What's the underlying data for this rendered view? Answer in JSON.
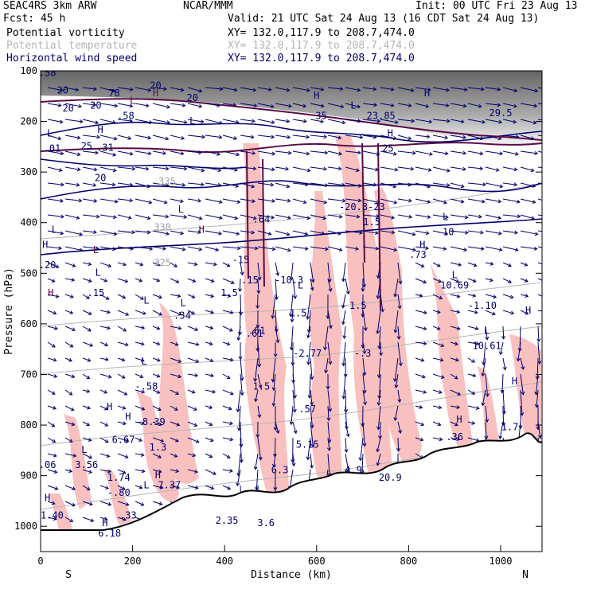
{
  "header": {
    "model": "SEAC4RS  3km ARW",
    "org": "NCAR/MMM",
    "init": "Init: 00 UTC Fri 23 Aug 13",
    "fcst": "Fcst:   45 h",
    "valid": "Valid: 21 UTC Sat 24 Aug 13 (16 CDT Sat 24 Aug 13)",
    "fields": [
      {
        "label": "Potential vorticity",
        "xy": "XY= 132.0,117.9 to 208.7,474.0",
        "color": "#000000"
      },
      {
        "label": "Potential temperature",
        "xy": "XY= 132.0,117.9 to 208.7,474.0",
        "color": "#b4b4b4"
      },
      {
        "label": "Horizontal wind speed",
        "xy": "XY= 132.0,117.9 to 208.7,474.0",
        "color": "#00006e"
      }
    ]
  },
  "chart_data": {
    "type": "cross-section",
    "xlabel": "Distance (km)",
    "ylabel": "Pressure (hPa)",
    "xlim": [
      0,
      1090
    ],
    "ylim": [
      1050,
      100
    ],
    "x_ticks": [
      0,
      200,
      400,
      600,
      800,
      1000
    ],
    "y_ticks": [
      100,
      200,
      300,
      400,
      500,
      600,
      700,
      800,
      900,
      1000
    ],
    "x_end_labels": {
      "left": "S",
      "right": "N"
    },
    "theta_labels": [
      {
        "label": "335",
        "x": 275,
        "p": 325
      },
      {
        "label": "330",
        "x": 265,
        "p": 415
      },
      {
        "label": "325",
        "x": 265,
        "p": 485
      }
    ],
    "wind_labels": [
      {
        "label": "20",
        "x": 60,
        "p": 180
      },
      {
        "label": "20",
        "x": 120,
        "p": 175
      },
      {
        "label": "25",
        "x": 100,
        "p": 255
      },
      {
        "label": "20",
        "x": 130,
        "p": 318
      },
      {
        "label": "20",
        "x": 330,
        "p": 160
      }
    ],
    "pv_labels": [
      {
        "label": "H",
        "x": 22,
        "p": 545
      },
      {
        "label": "H",
        "x": 250,
        "p": 150
      },
      {
        "label": "L",
        "x": 200,
        "p": 165
      },
      {
        "label": "H",
        "x": 350,
        "p": 420
      },
      {
        "label": "L",
        "x": 120,
        "p": 460
      },
      {
        "label": "L",
        "x": 305,
        "p": 380
      }
    ],
    "extrema_labels": [
      {
        "label": ".58",
        "x": 15,
        "p": 110
      },
      {
        "label": "20",
        "x": 48,
        "p": 145
      },
      {
        "label": "78",
        "x": 160,
        "p": 150
      },
      {
        "label": "20",
        "x": 250,
        "p": 135
      },
      {
        "label": ".58",
        "x": 185,
        "p": 195
      },
      {
        "label": "L",
        "x": 20,
        "p": 230
      },
      {
        "label": "H",
        "x": 130,
        "p": 223
      },
      {
        "label": ".01",
        "x": 25,
        "p": 260
      },
      {
        "label": ".31",
        "x": 140,
        "p": 258
      },
      {
        "label": "L",
        "x": 30,
        "p": 420
      },
      {
        "label": "H",
        "x": 10,
        "p": 450
      },
      {
        "label": ".20",
        "x": 15,
        "p": 490
      },
      {
        "label": "L",
        "x": 125,
        "p": 505
      },
      {
        "label": ".15",
        "x": 120,
        "p": 545
      },
      {
        "label": "L",
        "x": 310,
        "p": 565
      },
      {
        "label": ".34",
        "x": 308,
        "p": 590
      },
      {
        "label": "L",
        "x": 230,
        "p": 560
      },
      {
        "label": "1.5",
        "x": 410,
        "p": 545
      },
      {
        "label": ".61",
        "x": 470,
        "p": 620
      },
      {
        "label": "L",
        "x": 225,
        "p": 680
      },
      {
        "label": "-.58",
        "x": 230,
        "p": 730
      },
      {
        "label": "H",
        "x": 190,
        "p": 790
      },
      {
        "label": "-8.39",
        "x": 240,
        "p": 800
      },
      {
        "label": "6.67",
        "x": 180,
        "p": 835
      },
      {
        "label": "1.3",
        "x": 255,
        "p": 850
      },
      {
        "label": "H",
        "x": 150,
        "p": 770
      },
      {
        "label": "L",
        "x": 95,
        "p": 855
      },
      {
        "label": ".06",
        "x": 15,
        "p": 885
      },
      {
        "label": "3.56",
        "x": 100,
        "p": 885
      },
      {
        "label": "1.74",
        "x": 170,
        "p": 910
      },
      {
        "label": "-.80",
        "x": 170,
        "p": 940
      },
      {
        "label": ".33",
        "x": 190,
        "p": 985
      },
      {
        "label": "H",
        "x": 15,
        "p": 950
      },
      {
        "label": "1.40",
        "x": 25,
        "p": 985
      },
      {
        "label": "H",
        "x": 140,
        "p": 1000
      },
      {
        "label": "6.18",
        "x": 150,
        "p": 1020
      },
      {
        "label": "H",
        "x": 255,
        "p": 905
      },
      {
        "label": "7.37",
        "x": 280,
        "p": 925
      },
      {
        "label": "L",
        "x": 230,
        "p": 925
      },
      {
        "label": "2.35",
        "x": 405,
        "p": 995
      },
      {
        "label": "3.6",
        "x": 490,
        "p": 1000
      },
      {
        "label": "L",
        "x": 330,
        "p": 205
      },
      {
        "label": "-15",
        "x": 435,
        "p": 480
      },
      {
        "label": ".64",
        "x": 480,
        "p": 400
      },
      {
        "label": ".15",
        "x": 455,
        "p": 520
      },
      {
        "label": ".61",
        "x": 465,
        "p": 625
      },
      {
        "label": "L",
        "x": 565,
        "p": 530
      },
      {
        "label": "-10.3",
        "x": 540,
        "p": 520
      },
      {
        "label": "1.5",
        "x": 560,
        "p": 585
      },
      {
        "label": "-2.77",
        "x": 580,
        "p": 665
      },
      {
        "label": "1.5",
        "x": 480,
        "p": 730
      },
      {
        "label": ".57",
        "x": 580,
        "p": 775
      },
      {
        "label": "5.15",
        "x": 580,
        "p": 845
      },
      {
        "label": "6.3",
        "x": 520,
        "p": 895
      },
      {
        "label": "4.9",
        "x": 680,
        "p": 895
      },
      {
        "label": "20.9",
        "x": 760,
        "p": 910
      },
      {
        "label": "-.3",
        "x": 700,
        "p": 665
      },
      {
        "label": "1.5",
        "x": 690,
        "p": 570
      },
      {
        "label": "-20.3",
        "x": 680,
        "p": 375
      },
      {
        "label": "-23",
        "x": 730,
        "p": 375
      },
      {
        "label": "1.5",
        "x": 720,
        "p": 405
      },
      {
        "label": "35",
        "x": 610,
        "p": 195
      },
      {
        "label": "23.85",
        "x": 740,
        "p": 195
      },
      {
        "label": "25",
        "x": 755,
        "p": 260
      },
      {
        "label": "H",
        "x": 600,
        "p": 155
      },
      {
        "label": "H",
        "x": 760,
        "p": 230
      },
      {
        "label": "L",
        "x": 680,
        "p": 175
      },
      {
        "label": "H",
        "x": 830,
        "p": 450
      },
      {
        "label": ".73",
        "x": 820,
        "p": 470
      },
      {
        "label": "L",
        "x": 880,
        "p": 395
      },
      {
        "label": "-10",
        "x": 880,
        "p": 425
      },
      {
        "label": "L",
        "x": 900,
        "p": 510
      },
      {
        "label": "10.69",
        "x": 900,
        "p": 530
      },
      {
        "label": "-1.10",
        "x": 960,
        "p": 570
      },
      {
        "label": "L",
        "x": 970,
        "p": 620
      },
      {
        "label": "10.61",
        "x": 970,
        "p": 650
      },
      {
        "label": "H",
        "x": 1060,
        "p": 580
      },
      {
        "label": "H",
        "x": 1030,
        "p": 720
      },
      {
        "label": "H",
        "x": 910,
        "p": 795
      },
      {
        "label": ".36",
        "x": 900,
        "p": 830
      },
      {
        "label": "1.7",
        "x": 1020,
        "p": 810
      },
      {
        "label": "29.5",
        "x": 1000,
        "p": 190
      },
      {
        "label": "H",
        "x": 840,
        "p": 150
      }
    ]
  }
}
